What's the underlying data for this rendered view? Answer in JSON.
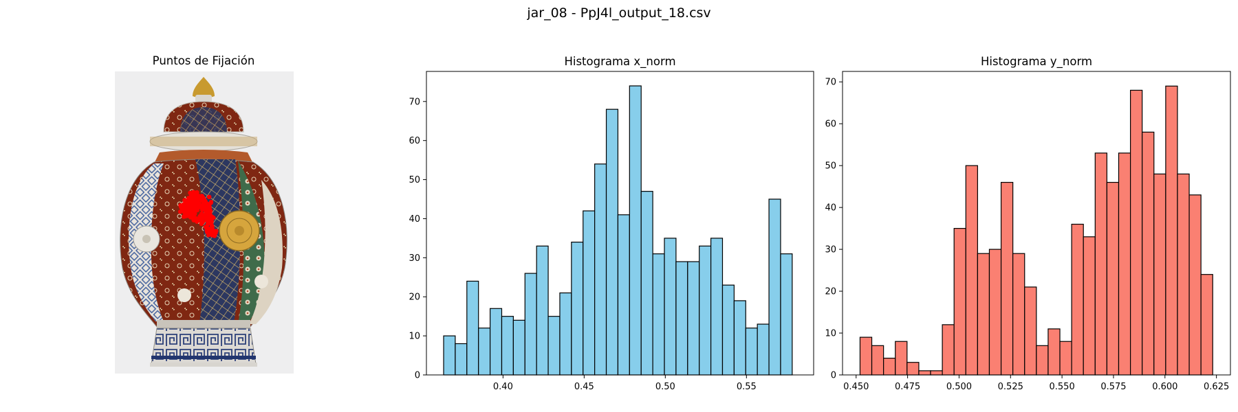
{
  "figure": {
    "suptitle": "jar_08 - PpJ4l_output_18.csv"
  },
  "image_panel": {
    "title": "Puntos de Fijación",
    "subject": "porcelain lidded jar (Imari style) with red fixation points overlay"
  },
  "colors": {
    "x_hist": "#87ceeb",
    "y_hist": "#fa8072",
    "edge": "#000000",
    "fixation": "#ff0000"
  },
  "chart_data": [
    {
      "type": "bar",
      "title": "Histograma x_norm",
      "xlabel": "",
      "ylabel": "",
      "bin_start": 0.3634,
      "bin_width": 0.00716,
      "values": [
        10,
        8,
        24,
        12,
        17,
        15,
        14,
        26,
        33,
        15,
        21,
        34,
        42,
        54,
        68,
        41,
        74,
        47,
        31,
        35,
        29,
        29,
        33,
        35,
        23,
        19,
        12,
        13,
        45,
        31
      ],
      "xlim": [
        0.3528,
        0.5914
      ],
      "ylim": [
        0,
        77.7
      ],
      "xticks": [
        0.4,
        0.45,
        0.5,
        0.55
      ],
      "xtick_labels": [
        "0.40",
        "0.45",
        "0.50",
        "0.55"
      ],
      "yticks": [
        0,
        10,
        20,
        30,
        40,
        50,
        60,
        70
      ],
      "ytick_labels": [
        "0",
        "10",
        "20",
        "30",
        "40",
        "50",
        "60",
        "70"
      ]
    },
    {
      "type": "bar",
      "title": "Histograma y_norm",
      "xlabel": "",
      "ylabel": "",
      "bin_start": 0.4519,
      "bin_width": 0.00571,
      "values": [
        9,
        7,
        4,
        8,
        3,
        1,
        1,
        12,
        35,
        50,
        29,
        30,
        46,
        29,
        21,
        7,
        11,
        8,
        36,
        33,
        53,
        46,
        53,
        68,
        58,
        48,
        69,
        48,
        43,
        24
      ],
      "xlim": [
        0.4434,
        0.6318
      ],
      "ylim": [
        0,
        72.5
      ],
      "xticks": [
        0.45,
        0.475,
        0.5,
        0.525,
        0.55,
        0.575,
        0.6,
        0.625
      ],
      "xtick_labels": [
        "0.450",
        "0.475",
        "0.500",
        "0.525",
        "0.550",
        "0.575",
        "0.600",
        "0.625"
      ],
      "yticks": [
        0,
        10,
        20,
        30,
        40,
        50,
        60,
        70
      ],
      "ytick_labels": [
        "0",
        "10",
        "20",
        "30",
        "40",
        "50",
        "60",
        "70"
      ]
    }
  ]
}
